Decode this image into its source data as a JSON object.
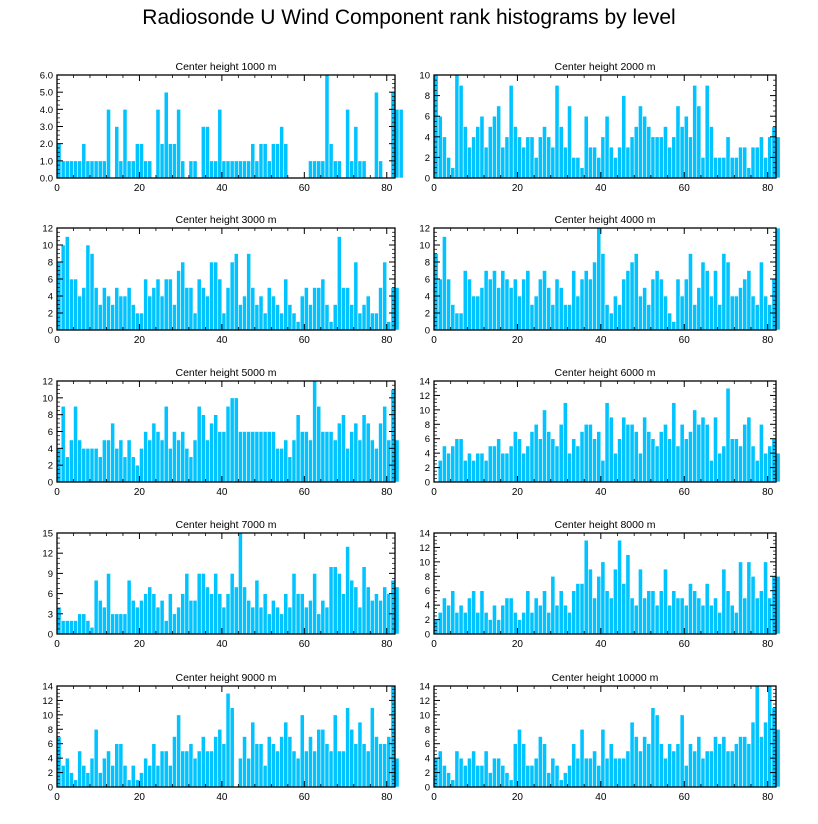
{
  "title": "Radiosonde U Wind Component rank histograms by level",
  "colors": {
    "bar": "#00c3ff",
    "bar_edge": "#ffffff",
    "axis": "#000000"
  },
  "chart_data": [
    {
      "type": "bar",
      "title": "Center height 1000 m",
      "xlim": [
        0,
        82
      ],
      "ylim": [
        0,
        6
      ],
      "xticks": [
        0,
        20,
        40,
        60,
        80
      ],
      "yticks": [
        0,
        1,
        2,
        3,
        4,
        5,
        6
      ],
      "ytick_labels": [
        "0.0",
        "1.0",
        "2.0",
        "3.0",
        "4.0",
        "5.0",
        "6.0"
      ],
      "values": [
        2,
        1,
        1,
        1,
        1,
        1,
        2,
        1,
        1,
        1,
        1,
        1,
        4,
        0,
        3,
        1,
        4,
        1,
        1,
        2,
        2,
        1,
        1,
        0,
        4,
        2,
        5,
        2,
        2,
        4,
        1,
        0,
        1,
        1,
        0,
        3,
        3,
        1,
        1,
        4,
        1,
        1,
        1,
        1,
        1,
        1,
        1,
        2,
        1,
        2,
        2,
        1,
        2,
        2,
        3,
        2,
        0,
        0,
        0,
        0,
        0,
        1,
        1,
        1,
        1,
        6,
        2,
        1,
        1,
        0,
        4,
        1,
        3,
        1,
        1,
        0,
        0,
        5,
        1,
        0,
        0,
        5,
        4,
        4
      ]
    },
    {
      "type": "bar",
      "title": "Center height 2000 m",
      "xlim": [
        0,
        82
      ],
      "ylim": [
        0,
        10
      ],
      "xticks": [
        0,
        20,
        40,
        60,
        80
      ],
      "yticks": [
        0,
        2,
        4,
        6,
        8,
        10
      ],
      "ytick_labels": [
        "0",
        "2",
        "4",
        "6",
        "8",
        "10"
      ],
      "values": [
        10,
        6,
        4,
        2,
        1,
        10,
        9,
        5,
        3,
        4,
        5,
        6,
        3,
        5,
        6,
        7,
        3,
        4,
        9,
        5,
        4,
        3,
        4,
        4,
        2,
        4,
        5,
        4,
        3,
        9,
        5,
        3,
        7,
        2,
        2,
        1,
        6,
        3,
        3,
        2,
        4,
        6,
        3,
        2,
        3,
        8,
        3,
        4,
        5,
        7,
        6,
        5,
        4,
        4,
        4,
        5,
        3,
        4,
        7,
        5,
        6,
        4,
        9,
        7,
        2,
        9,
        5,
        2,
        2,
        2,
        4,
        2,
        2,
        3,
        3,
        1,
        3,
        3,
        4,
        2,
        4,
        5,
        4
      ]
    },
    {
      "type": "bar",
      "title": "Center height 3000 m",
      "xlim": [
        0,
        82
      ],
      "ylim": [
        0,
        12
      ],
      "xticks": [
        0,
        20,
        40,
        60,
        80
      ],
      "yticks": [
        0,
        2,
        4,
        6,
        8,
        10,
        12
      ],
      "ytick_labels": [
        "0",
        "2",
        "4",
        "6",
        "8",
        "10",
        "12"
      ],
      "values": [
        8,
        10,
        11,
        6,
        6,
        4,
        5,
        10,
        9,
        5,
        3,
        5,
        4,
        3,
        5,
        4,
        4,
        5,
        3,
        2,
        2,
        6,
        4,
        5,
        6,
        4,
        6,
        6,
        3,
        7,
        8,
        5,
        5,
        2,
        6,
        5,
        4,
        8,
        8,
        6,
        2,
        5,
        8,
        9,
        3,
        4,
        9,
        5,
        3,
        4,
        2,
        5,
        4,
        3,
        2,
        6,
        3,
        2,
        1,
        4,
        5,
        3,
        5,
        5,
        6,
        3,
        1,
        3,
        11,
        5,
        5,
        3,
        8,
        2,
        3,
        4,
        2,
        2,
        5,
        8,
        1,
        5,
        5
      ]
    },
    {
      "type": "bar",
      "title": "Center height 4000 m",
      "xlim": [
        0,
        82
      ],
      "ylim": [
        0,
        12
      ],
      "xticks": [
        0,
        20,
        40,
        60,
        80
      ],
      "yticks": [
        0,
        2,
        4,
        6,
        8,
        10,
        12
      ],
      "ytick_labels": [
        "0",
        "2",
        "4",
        "6",
        "8",
        "10",
        "12"
      ],
      "values": [
        9,
        6,
        11,
        6,
        3,
        2,
        2,
        7,
        6,
        4,
        4,
        5,
        7,
        6,
        7,
        5,
        7,
        6,
        5,
        6,
        4,
        6,
        7,
        3,
        4,
        6,
        7,
        5,
        3,
        6,
        5,
        3,
        3,
        7,
        4,
        6,
        7,
        6,
        8,
        12,
        9,
        3,
        2,
        4,
        3,
        6,
        7,
        8,
        9,
        4,
        5,
        3,
        6,
        7,
        6,
        4,
        2,
        1,
        6,
        4,
        6,
        9,
        3,
        5,
        8,
        7,
        4,
        7,
        3,
        9,
        8,
        4,
        4,
        5,
        6,
        7,
        4,
        3,
        8,
        4,
        3,
        6,
        12
      ]
    },
    {
      "type": "bar",
      "title": "Center height 5000 m",
      "xlim": [
        0,
        82
      ],
      "ylim": [
        0,
        12
      ],
      "xticks": [
        0,
        20,
        40,
        60,
        80
      ],
      "yticks": [
        0,
        2,
        4,
        6,
        8,
        10,
        12
      ],
      "ytick_labels": [
        "0",
        "2",
        "4",
        "6",
        "8",
        "10",
        "12"
      ],
      "values": [
        4,
        9,
        3,
        5,
        9,
        5,
        4,
        4,
        4,
        4,
        3,
        5,
        5,
        7,
        4,
        5,
        3,
        5,
        3,
        2,
        4,
        6,
        5,
        7,
        6,
        5,
        9,
        4,
        6,
        5,
        6,
        4,
        3,
        5,
        9,
        8,
        5,
        7,
        8,
        6,
        6,
        9,
        10,
        10,
        6,
        6,
        6,
        6,
        6,
        6,
        6,
        6,
        6,
        4,
        4,
        5,
        3,
        5,
        8,
        6,
        6,
        5,
        12,
        9,
        6,
        6,
        6,
        5,
        7,
        8,
        4,
        6,
        7,
        5,
        8,
        7,
        5,
        4,
        7,
        9,
        5,
        11,
        5
      ]
    },
    {
      "type": "bar",
      "title": "Center height 6000 m",
      "xlim": [
        0,
        82
      ],
      "ylim": [
        0,
        14
      ],
      "xticks": [
        0,
        20,
        40,
        60,
        80
      ],
      "yticks": [
        0,
        2,
        4,
        6,
        8,
        10,
        12,
        14
      ],
      "ytick_labels": [
        "0",
        "2",
        "4",
        "6",
        "8",
        "10",
        "12",
        "14"
      ],
      "values": [
        0,
        3,
        5,
        4,
        5,
        6,
        6,
        3,
        4,
        3,
        4,
        4,
        3,
        5,
        5,
        6,
        4,
        4,
        5,
        7,
        6,
        4,
        5,
        7,
        8,
        6,
        10,
        7,
        6,
        5,
        8,
        11,
        4,
        6,
        5,
        7,
        8,
        8,
        6,
        7,
        3,
        11,
        9,
        4,
        6,
        9,
        8,
        8,
        7,
        4,
        9,
        7,
        6,
        5,
        7,
        8,
        6,
        11,
        5,
        8,
        6,
        7,
        10,
        8,
        9,
        8,
        3,
        9,
        4,
        5,
        13,
        6,
        6,
        5,
        8,
        9,
        5,
        3,
        8,
        4,
        5,
        6,
        4
      ]
    },
    {
      "type": "bar",
      "title": "Center height 7000 m",
      "xlim": [
        0,
        82
      ],
      "ylim": [
        0,
        15
      ],
      "xticks": [
        0,
        20,
        40,
        60,
        80
      ],
      "yticks": [
        0,
        3,
        6,
        9,
        12,
        15
      ],
      "ytick_labels": [
        "0",
        "3",
        "6",
        "9",
        "12",
        "15"
      ],
      "values": [
        4,
        2,
        2,
        2,
        2,
        3,
        3,
        2,
        1,
        8,
        5,
        4,
        9,
        3,
        3,
        3,
        3,
        8,
        5,
        4,
        5,
        6,
        7,
        6,
        4,
        5,
        2,
        6,
        3,
        4,
        6,
        9,
        5,
        5,
        9,
        9,
        7,
        6,
        9,
        6,
        4,
        6,
        9,
        7,
        15,
        7,
        5,
        4,
        8,
        4,
        6,
        3,
        5,
        4,
        3,
        6,
        4,
        9,
        6,
        6,
        4,
        5,
        9,
        3,
        5,
        4,
        10,
        10,
        9,
        6,
        13,
        8,
        7,
        4,
        10,
        7,
        5,
        6,
        5,
        7,
        6,
        8,
        7
      ]
    },
    {
      "type": "bar",
      "title": "Center height 8000 m",
      "xlim": [
        0,
        82
      ],
      "ylim": [
        0,
        14
      ],
      "xticks": [
        0,
        20,
        40,
        60,
        80
      ],
      "yticks": [
        0,
        2,
        4,
        6,
        8,
        10,
        12,
        14
      ],
      "ytick_labels": [
        "0",
        "2",
        "4",
        "6",
        "8",
        "10",
        "12",
        "14"
      ],
      "values": [
        2,
        3,
        5,
        4,
        6,
        3,
        4,
        3,
        5,
        6,
        3,
        6,
        3,
        2,
        4,
        2,
        4,
        5,
        5,
        3,
        2,
        3,
        6,
        3,
        5,
        4,
        6,
        3,
        8,
        4,
        6,
        4,
        3,
        6,
        7,
        7,
        13,
        9,
        5,
        8,
        10,
        6,
        5,
        9,
        13,
        7,
        11,
        5,
        4,
        9,
        5,
        6,
        6,
        4,
        6,
        9,
        4,
        6,
        5,
        5,
        4,
        7,
        6,
        5,
        4,
        7,
        4,
        5,
        3,
        9,
        6,
        4,
        3,
        10,
        5,
        10,
        8,
        5,
        6,
        10,
        5,
        8,
        8
      ]
    },
    {
      "type": "bar",
      "title": "Center height 9000 m",
      "xlim": [
        0,
        82
      ],
      "ylim": [
        0,
        14
      ],
      "xticks": [
        0,
        20,
        40,
        60,
        80
      ],
      "yticks": [
        0,
        2,
        4,
        6,
        8,
        10,
        12,
        14
      ],
      "ytick_labels": [
        "0",
        "2",
        "4",
        "6",
        "8",
        "10",
        "12",
        "14"
      ],
      "values": [
        7,
        3,
        4,
        2,
        1,
        5,
        3,
        2,
        4,
        8,
        2,
        4,
        5,
        3,
        6,
        6,
        3,
        1,
        3,
        1,
        2,
        4,
        3,
        6,
        3,
        5,
        5,
        3,
        7,
        10,
        5,
        5,
        6,
        4,
        5,
        7,
        5,
        5,
        7,
        8,
        6,
        13,
        11,
        0,
        4,
        7,
        4,
        9,
        6,
        6,
        3,
        7,
        6,
        5,
        7,
        9,
        7,
        5,
        4,
        10,
        5,
        7,
        5,
        8,
        8,
        6,
        5,
        10,
        5,
        5,
        11,
        8,
        6,
        9,
        6,
        5,
        11,
        7,
        6,
        6,
        7,
        14,
        4
      ]
    },
    {
      "type": "bar",
      "title": "Center height 10000 m",
      "xlim": [
        0,
        82
      ],
      "ylim": [
        0,
        14
      ],
      "xticks": [
        0,
        20,
        40,
        60,
        80
      ],
      "yticks": [
        0,
        2,
        4,
        6,
        8,
        10,
        12,
        14
      ],
      "ytick_labels": [
        "0",
        "2",
        "4",
        "6",
        "8",
        "10",
        "12",
        "14"
      ],
      "values": [
        4,
        5,
        3,
        2,
        1,
        5,
        4,
        3,
        4,
        5,
        3,
        3,
        5,
        2,
        4,
        4,
        3,
        2,
        1,
        6,
        8,
        6,
        3,
        3,
        4,
        7,
        6,
        2,
        4,
        3,
        1,
        2,
        3,
        6,
        4,
        8,
        4,
        4,
        5,
        3,
        8,
        4,
        6,
        4,
        4,
        4,
        5,
        9,
        7,
        5,
        7,
        6,
        11,
        10,
        6,
        4,
        6,
        5,
        6,
        10,
        3,
        6,
        5,
        7,
        4,
        5,
        5,
        7,
        6,
        7,
        5,
        5,
        6,
        7,
        7,
        6,
        9,
        14,
        7,
        9,
        14,
        11,
        8
      ]
    }
  ]
}
